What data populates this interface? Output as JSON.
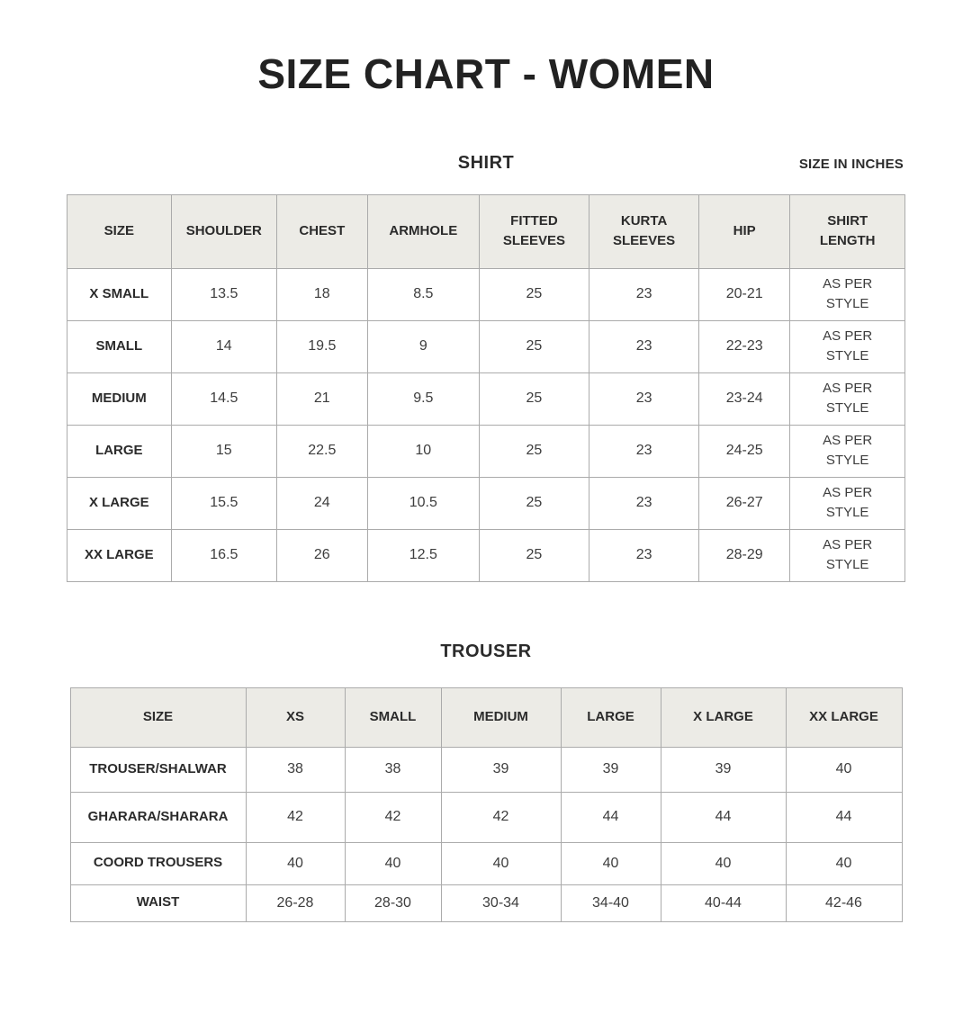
{
  "page_title": "SIZE CHART - WOMEN",
  "unit_note": "SIZE IN INCHES",
  "colors": {
    "page_bg": "#ffffff",
    "table_header_bg": "#ecebe6",
    "table_border": "#ababab",
    "text": "#2b2b2b"
  },
  "chart_data": [
    {
      "type": "table",
      "title": "SHIRT",
      "headers": [
        "SIZE",
        "SHOULDER",
        "CHEST",
        "ARMHOLE",
        "FITTED SLEEVES",
        "KURTA SLEEVES",
        "HIP",
        "SHIRT LENGTH"
      ],
      "rows": [
        {
          "label": "X SMALL",
          "values": [
            "13.5",
            "18",
            "8.5",
            "25",
            "23",
            "20-21",
            "AS PER STYLE"
          ]
        },
        {
          "label": "SMALL",
          "values": [
            "14",
            "19.5",
            "9",
            "25",
            "23",
            "22-23",
            "AS PER STYLE"
          ]
        },
        {
          "label": "MEDIUM",
          "values": [
            "14.5",
            "21",
            "9.5",
            "25",
            "23",
            "23-24",
            "AS PER STYLE"
          ]
        },
        {
          "label": "LARGE",
          "values": [
            "15",
            "22.5",
            "10",
            "25",
            "23",
            "24-25",
            "AS PER STYLE"
          ]
        },
        {
          "label": "X LARGE",
          "values": [
            "15.5",
            "24",
            "10.5",
            "25",
            "23",
            "26-27",
            "AS PER STYLE"
          ]
        },
        {
          "label": "XX LARGE",
          "values": [
            "16.5",
            "26",
            "12.5",
            "25",
            "23",
            "28-29",
            "AS PER STYLE"
          ]
        }
      ]
    },
    {
      "type": "table",
      "title": "TROUSER",
      "headers": [
        "SIZE",
        "XS",
        "SMALL",
        "MEDIUM",
        "LARGE",
        "X LARGE",
        "XX LARGE"
      ],
      "rows": [
        {
          "label": "TROUSER/SHALWAR",
          "values": [
            "38",
            "38",
            "39",
            "39",
            "39",
            "40"
          ]
        },
        {
          "label": "GHARARA/SHARARA",
          "values": [
            "42",
            "42",
            "42",
            "44",
            "44",
            "44"
          ]
        },
        {
          "label": "COORD TROUSERS",
          "values": [
            "40",
            "40",
            "40",
            "40",
            "40",
            "40"
          ]
        },
        {
          "label": "WAIST",
          "values": [
            "26-28",
            "28-30",
            "30-34",
            "34-40",
            "40-44",
            "42-46"
          ]
        }
      ]
    }
  ]
}
